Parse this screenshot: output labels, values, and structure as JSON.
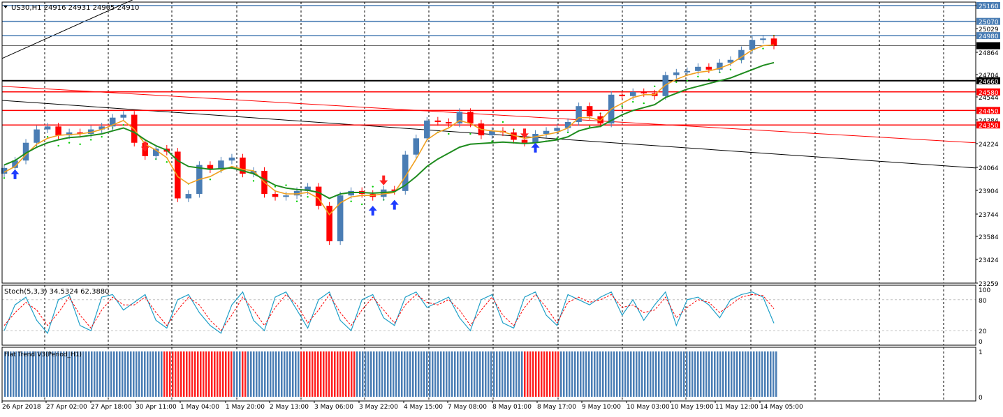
{
  "header": {
    "symbol_line": "US30,H1  24916 24931 24905 24910",
    "stoch_label": "Stoch(5,3,3) 34.5324 62.3880",
    "flat_label": "Flat Trend V3(Period_H1)"
  },
  "chart_data": {
    "type": "candlestick",
    "price_axis": {
      "ticks": [
        "25160",
        "25029",
        "24864",
        "24704",
        "24544",
        "24384",
        "24224",
        "24064",
        "23904",
        "23744",
        "23584",
        "23424",
        "23259"
      ],
      "range": [
        23259,
        25190
      ]
    },
    "price_lines": [
      {
        "label": "25160",
        "value": 25160,
        "color": "#4a7db4"
      },
      {
        "label": "25070",
        "value": 25070,
        "color": "#4a7db4"
      },
      {
        "label": "24980",
        "value": 24980,
        "color": "#4a7db4"
      },
      {
        "label": "24910",
        "value": 24910,
        "color": "#000000"
      },
      {
        "label": "24660",
        "value": 24660,
        "color": "#000000"
      },
      {
        "label": "24580",
        "value": 24580,
        "color": "#ff0000"
      },
      {
        "label": "24450",
        "value": 24450,
        "color": "#ff0000"
      },
      {
        "label": "24350",
        "value": 24350,
        "color": "#ff0000"
      }
    ],
    "time_labels": [
      "26 Apr 2018",
      "27 Apr 02:00",
      "27 Apr 18:00",
      "30 Apr 11:00",
      "1 May 04:00",
      "1 May 20:00",
      "2 May 13:00",
      "3 May 06:00",
      "3 May 22:00",
      "4 May 15:00",
      "7 May 08:00",
      "8 May 01:00",
      "8 May 17:00",
      "9 May 10:00",
      "10 May 03:00",
      "10 May 19:00",
      "11 May 12:00",
      "14 May 05:00"
    ],
    "series": [
      {
        "name": "close",
        "values": [
          24060,
          24110,
          24230,
          24320,
          24340,
          24280,
          24300,
          24290,
          24320,
          24340,
          24400,
          24420,
          24230,
          24140,
          24190,
          24170,
          23850,
          23880,
          24080,
          24050,
          24110,
          24130,
          24020,
          24040,
          23880,
          23860,
          23870,
          23900,
          23930,
          23800,
          23550,
          23870,
          23900,
          23880,
          23860,
          23910,
          23900,
          24150,
          24260,
          24380,
          24370,
          24360,
          24440,
          24360,
          24280,
          24310,
          24300,
          24250,
          24230,
          24290,
          24310,
          24330,
          24370,
          24480,
          24410,
          24360,
          24560,
          24550,
          24580,
          24570,
          24550,
          24700,
          24720,
          24730,
          24760,
          24740,
          24790,
          24810,
          24880,
          24950,
          24960,
          24910
        ]
      },
      {
        "name": "ma_fast",
        "values": [
          24030,
          24070,
          24150,
          24220,
          24260,
          24280,
          24285,
          24290,
          24300,
          24320,
          24350,
          24380,
          24320,
          24220,
          24180,
          24130,
          24000,
          23950,
          23980,
          24000,
          24040,
          24070,
          24050,
          24040,
          23960,
          23900,
          23880,
          23880,
          23890,
          23850,
          23740,
          23820,
          23860,
          23870,
          23870,
          23880,
          23890,
          24000,
          24120,
          24250,
          24300,
          24330,
          24380,
          24360,
          24320,
          24310,
          24305,
          24280,
          24260,
          24270,
          24285,
          24300,
          24330,
          24400,
          24400,
          24380,
          24460,
          24500,
          24540,
          24560,
          24560,
          24630,
          24670,
          24700,
          24720,
          24730,
          24750,
          24780,
          24830,
          24880,
          24910,
          24915
        ]
      },
      {
        "name": "ma_slow",
        "values": [
          24080,
          24110,
          24160,
          24200,
          24230,
          24250,
          24265,
          24270,
          24280,
          24290,
          24310,
          24330,
          24300,
          24250,
          24210,
          24180,
          24110,
          24070,
          24060,
          24050,
          24055,
          24060,
          24040,
          24020,
          23980,
          23940,
          23920,
          23910,
          23905,
          23890,
          23850,
          23880,
          23890,
          23890,
          23885,
          23890,
          23895,
          23940,
          24000,
          24070,
          24120,
          24160,
          24200,
          24220,
          24225,
          24230,
          24235,
          24230,
          24225,
          24230,
          24240,
          24250,
          24270,
          24310,
          24330,
          24340,
          24380,
          24420,
          24450,
          24470,
          24490,
          24540,
          24570,
          24600,
          24620,
          24640,
          24660,
          24680,
          24710,
          24740,
          24770,
          24790
        ]
      }
    ],
    "trend_lines": [
      {
        "color": "#000000",
        "from": [
          "26 Apr 2018",
          24820
        ],
        "to": [
          "30 Apr 11:00",
          25200
        ]
      },
      {
        "color": "#ff0000",
        "from": [
          "26 Apr 2018",
          24620
        ],
        "to": [
          "14 May 05:00",
          24230
        ]
      },
      {
        "color": "#000000",
        "from": [
          "26 Apr 2018",
          24520
        ],
        "to": [
          "14 May 05:00",
          24060
        ]
      }
    ],
    "stoch": {
      "ticks": [
        "100",
        "80",
        "20",
        "0"
      ],
      "levels": [
        80,
        20
      ],
      "k": [
        20,
        70,
        85,
        40,
        15,
        80,
        90,
        30,
        20,
        85,
        90,
        60,
        75,
        90,
        40,
        25,
        80,
        90,
        55,
        30,
        15,
        70,
        95,
        40,
        20,
        85,
        95,
        60,
        25,
        80,
        95,
        40,
        20,
        80,
        90,
        45,
        30,
        85,
        95,
        65,
        75,
        85,
        45,
        20,
        80,
        90,
        35,
        25,
        85,
        95,
        50,
        30,
        90,
        80,
        70,
        85,
        95,
        50,
        80,
        40,
        70,
        95,
        30,
        80,
        85,
        70,
        45,
        80,
        90,
        95,
        85,
        34.5
      ],
      "d": [
        30,
        55,
        75,
        60,
        30,
        55,
        85,
        50,
        25,
        60,
        85,
        70,
        70,
        85,
        55,
        30,
        60,
        85,
        70,
        40,
        20,
        50,
        85,
        60,
        30,
        65,
        90,
        70,
        35,
        60,
        90,
        55,
        30,
        60,
        85,
        60,
        35,
        70,
        90,
        75,
        70,
        80,
        60,
        30,
        60,
        85,
        50,
        30,
        65,
        90,
        65,
        35,
        75,
        85,
        75,
        80,
        90,
        65,
        70,
        55,
        60,
        85,
        45,
        65,
        80,
        75,
        55,
        70,
        85,
        90,
        88,
        62.4
      ]
    },
    "flat_trend": {
      "ticks": [
        "1",
        "0"
      ],
      "segments": [
        {
          "from": 0.0,
          "to": 0.205,
          "value": 1,
          "color": "#4a7db4"
        },
        {
          "from": 0.205,
          "to": 0.295,
          "value": 1,
          "color": "#ff2020"
        },
        {
          "from": 0.295,
          "to": 0.305,
          "value": 1,
          "color": "#4a7db4"
        },
        {
          "from": 0.305,
          "to": 0.313,
          "value": 1,
          "color": "#ff2020"
        },
        {
          "from": 0.313,
          "to": 0.38,
          "value": 1,
          "color": "#4a7db4"
        },
        {
          "from": 0.38,
          "to": 0.455,
          "value": 1,
          "color": "#ff2020"
        },
        {
          "from": 0.455,
          "to": 0.67,
          "value": 1,
          "color": "#4a7db4"
        },
        {
          "from": 0.67,
          "to": 0.718,
          "value": 1,
          "color": "#ff2020"
        },
        {
          "from": 0.718,
          "to": 1.0,
          "value": 1,
          "color": "#4a7db4"
        }
      ]
    },
    "arrows": [
      {
        "dir": "up",
        "bar": 1,
        "color": "#1e3cff"
      },
      {
        "dir": "down",
        "bar": 13,
        "color": "#ff2020"
      },
      {
        "dir": "up",
        "bar": 34,
        "color": "#1e3cff"
      },
      {
        "dir": "down",
        "bar": 35,
        "color": "#ff2020"
      },
      {
        "dir": "up",
        "bar": 36,
        "color": "#1e3cff"
      },
      {
        "dir": "down",
        "bar": 48,
        "color": "#ff2020"
      },
      {
        "dir": "up",
        "bar": 49,
        "color": "#1e3cff"
      }
    ],
    "colors": {
      "up": "#4a7db4",
      "down": "#ff0000",
      "ma_fast": "#f0a020",
      "ma_slow": "#1e8c1e",
      "sar": "#00cc00",
      "stoch_k": "#20a0c8",
      "stoch_d": "#ff0000"
    }
  }
}
